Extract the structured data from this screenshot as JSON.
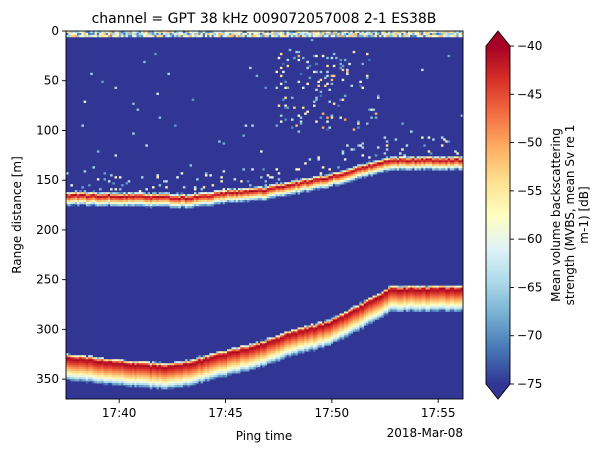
{
  "chart_data": {
    "type": "heatmap",
    "title": "channel = GPT  38 kHz 009072057008 2-1 ES38B",
    "xlabel": "Ping time",
    "x_offset_label": "2018-Mar-08",
    "ylabel": "Range distance [m]",
    "x_ticks": [
      "17:40",
      "17:45",
      "17:50",
      "17:55"
    ],
    "x_range": [
      "17:37:30",
      "17:56:10"
    ],
    "y_ticks": [
      0,
      50,
      100,
      150,
      200,
      250,
      300,
      350
    ],
    "ylim": [
      370,
      0
    ],
    "y_inverted": true,
    "colorbar": {
      "label_lines": [
        "Mean volume backscattering",
        "strength (MVBS, mean Sv re 1",
        "m-1) [dB]"
      ],
      "ticks": [
        -40,
        -45,
        -50,
        -55,
        -60,
        -65,
        -70,
        -75
      ],
      "vmin": -75,
      "vmax": -40,
      "extend": "both",
      "colormap": "RdYlBu_r",
      "colors": [
        "#313695",
        "#4575b4",
        "#74add1",
        "#abd9e9",
        "#e0f3f8",
        "#ffffbf",
        "#fee090",
        "#fdae61",
        "#f46d43",
        "#d73027",
        "#a50026"
      ]
    },
    "background_value": -75,
    "features": [
      {
        "name": "upper scattering layer",
        "time_minutes": [
          17.62,
          17.7,
          17.72,
          17.75,
          17.78,
          17.8,
          17.83,
          17.85,
          17.88
        ],
        "range_m": [
          165,
          167,
          168,
          163,
          160,
          155,
          148,
          140,
          130
        ],
        "peak_value": -40
      },
      {
        "name": "seabed echo",
        "time_minutes": [
          17.62,
          17.66,
          17.7,
          17.72,
          17.75,
          17.78,
          17.8,
          17.83,
          17.85,
          17.88
        ],
        "range_m": [
          328,
          333,
          338,
          335,
          325,
          315,
          305,
          295,
          282,
          260
        ],
        "peak_value": -40
      },
      {
        "name": "surface noise band",
        "range_m": [
          0,
          5
        ],
        "peak_value": -50
      },
      {
        "name": "scattered shallow targets",
        "time_minutes": [
          17.79,
          17.87
        ],
        "range_m": [
          20,
          100
        ],
        "peak_value": -50
      }
    ]
  }
}
